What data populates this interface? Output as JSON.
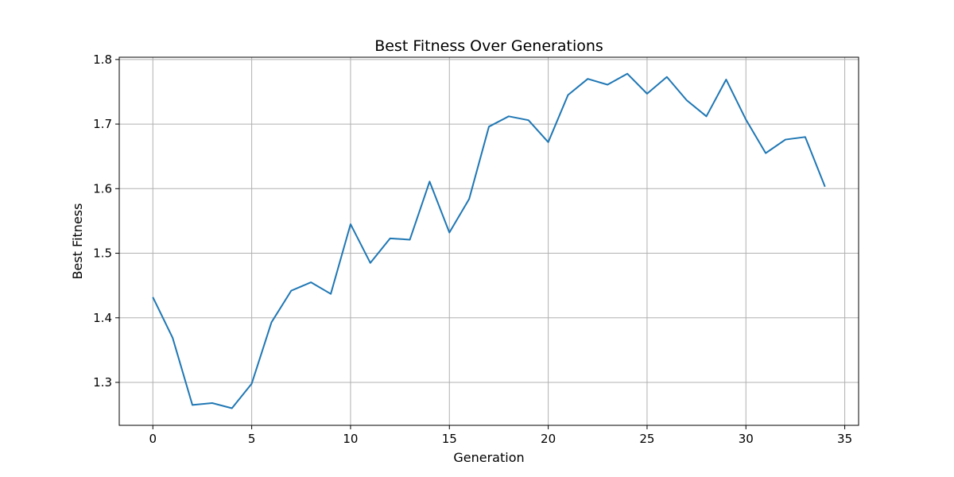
{
  "chart_data": {
    "type": "line",
    "title": "Best Fitness Over Generations",
    "xlabel": "Generation",
    "ylabel": "Best Fitness",
    "xlim": [
      -1.7,
      35.7
    ],
    "ylim": [
      1.2335,
      1.8035
    ],
    "xticks": [
      0,
      5,
      10,
      15,
      20,
      25,
      30,
      35
    ],
    "yticks": [
      1.3,
      1.4,
      1.5,
      1.6,
      1.7,
      1.8
    ],
    "ytick_labels": [
      "1.3",
      "1.4",
      "1.5",
      "1.6",
      "1.7",
      "1.8"
    ],
    "grid": true,
    "line_color": "#1f77b4",
    "series": [
      {
        "x": [
          0,
          1,
          2,
          3,
          4,
          5,
          6,
          7,
          8,
          9,
          10,
          11,
          12,
          13,
          14,
          15,
          16,
          17,
          18,
          19,
          20,
          21,
          22,
          23,
          24,
          25,
          26,
          27,
          28,
          29,
          30,
          31,
          32,
          33,
          34
        ],
        "values": [
          1.432,
          1.369,
          1.265,
          1.268,
          1.26,
          1.298,
          1.393,
          1.442,
          1.455,
          1.437,
          1.545,
          1.485,
          1.523,
          1.521,
          1.611,
          1.532,
          1.584,
          1.696,
          1.712,
          1.706,
          1.672,
          1.745,
          1.77,
          1.761,
          1.778,
          1.747,
          1.773,
          1.737,
          1.712,
          1.769,
          1.707,
          1.655,
          1.676,
          1.68,
          1.603
        ]
      }
    ]
  }
}
